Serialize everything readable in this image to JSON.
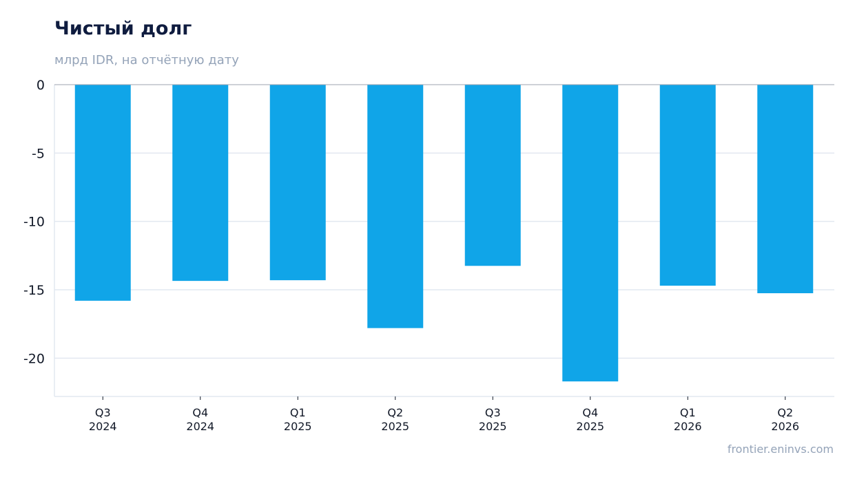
{
  "chart_data": {
    "type": "bar",
    "title": "Чистый долг",
    "subtitle": "млрд IDR, на отчётную дату",
    "categories": [
      [
        "Q3",
        "2024"
      ],
      [
        "Q4",
        "2024"
      ],
      [
        "Q1",
        "2025"
      ],
      [
        "Q2",
        "2025"
      ],
      [
        "Q3",
        "2025"
      ],
      [
        "Q4",
        "2025"
      ],
      [
        "Q1",
        "2026"
      ],
      [
        "Q2",
        "2026"
      ]
    ],
    "values": [
      -15.8,
      -14.35,
      -14.3,
      -17.8,
      -13.25,
      -21.7,
      -14.7,
      -15.25
    ],
    "ylim": [
      -22.8,
      0
    ],
    "yticks": [
      0,
      -5,
      -10,
      -15,
      -20
    ],
    "ytick_labels": [
      "0",
      "-5",
      "-10",
      "-15",
      "-20"
    ],
    "grid": true,
    "bar_color": "#10a5e8"
  },
  "source": "frontier.eninvs.com"
}
